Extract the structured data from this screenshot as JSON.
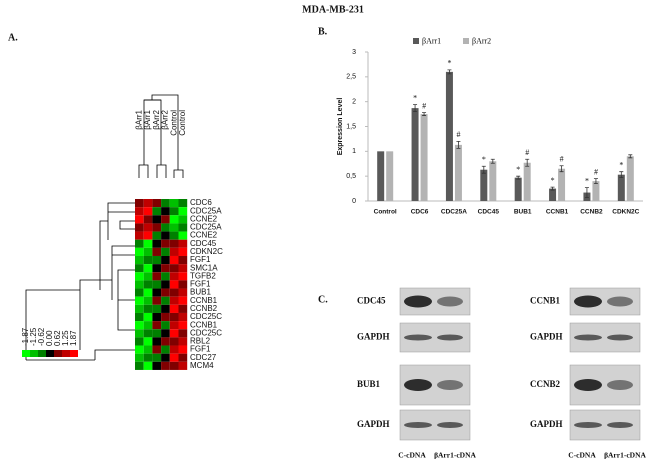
{
  "title": "MDA-MB-231",
  "panels": {
    "a": "A.",
    "b": "B.",
    "c": "C."
  },
  "heatmap": {
    "columns": [
      "βArr1",
      "βArr1",
      "βArr2",
      "βArr2",
      "Control",
      "Control"
    ],
    "rows": [
      "CDC6",
      "CDC25A",
      "CCNE2",
      "CDC25A",
      "CCNE2",
      "CDC45",
      "CDKN2C",
      "FGF1",
      "SMC1A",
      "TGFB2",
      "FGF1",
      "BUB1",
      "CCNB1",
      "CCNB2",
      "CDC25C",
      "CCNB1",
      "CDC25C",
      "RBL2",
      "FGF1",
      "CDC27",
      "MCM4"
    ],
    "legend": [
      "-1.87",
      "-1.25",
      "-0.62",
      "0.00",
      "0.62",
      "1.25",
      "1.87"
    ]
  },
  "chart_data": {
    "type": "bar",
    "categories": [
      "Control",
      "CDC6",
      "CDC25A",
      "CDC45",
      "BUB1",
      "CCNB1",
      "CCNB2",
      "CDKN2C"
    ],
    "ylabel": "Expression Level",
    "ylim": [
      0,
      3
    ],
    "yticks": [
      0,
      {
        "value": 0.5,
        "label": "0,5"
      },
      1,
      {
        "value": 1.5,
        "label": "1,5"
      },
      2,
      {
        "value": 2.5,
        "label": "2,5"
      },
      3
    ],
    "series": [
      {
        "name": "βArr1",
        "color": "#595959",
        "values": [
          1,
          1.87,
          2.6,
          0.63,
          0.47,
          0.25,
          0.17,
          0.53
        ],
        "errors": [
          0,
          0.07,
          0.04,
          0.07,
          0.03,
          0.03,
          0.1,
          0.06
        ],
        "markers": [
          null,
          "*",
          "*",
          "*",
          "*",
          "*",
          "*",
          "*"
        ]
      },
      {
        "name": "βArr2",
        "color": "#b3b3b3",
        "values": [
          1,
          1.75,
          1.13,
          0.8,
          0.77,
          0.65,
          0.4,
          0.9
        ],
        "errors": [
          0,
          0.03,
          0.07,
          0.04,
          0.07,
          0.06,
          0.05,
          0.03
        ],
        "markers": [
          null,
          "#",
          "#",
          null,
          "#",
          "#",
          "#",
          null
        ]
      }
    ]
  },
  "blots": {
    "left": [
      "CDC45",
      "GAPDH",
      "BUB1",
      "GAPDH"
    ],
    "right": [
      "CCNB1",
      "GAPDH",
      "CCNB2",
      "GAPDH"
    ],
    "lanes": [
      "C-cDNA",
      "βArr1-cDNA"
    ]
  }
}
